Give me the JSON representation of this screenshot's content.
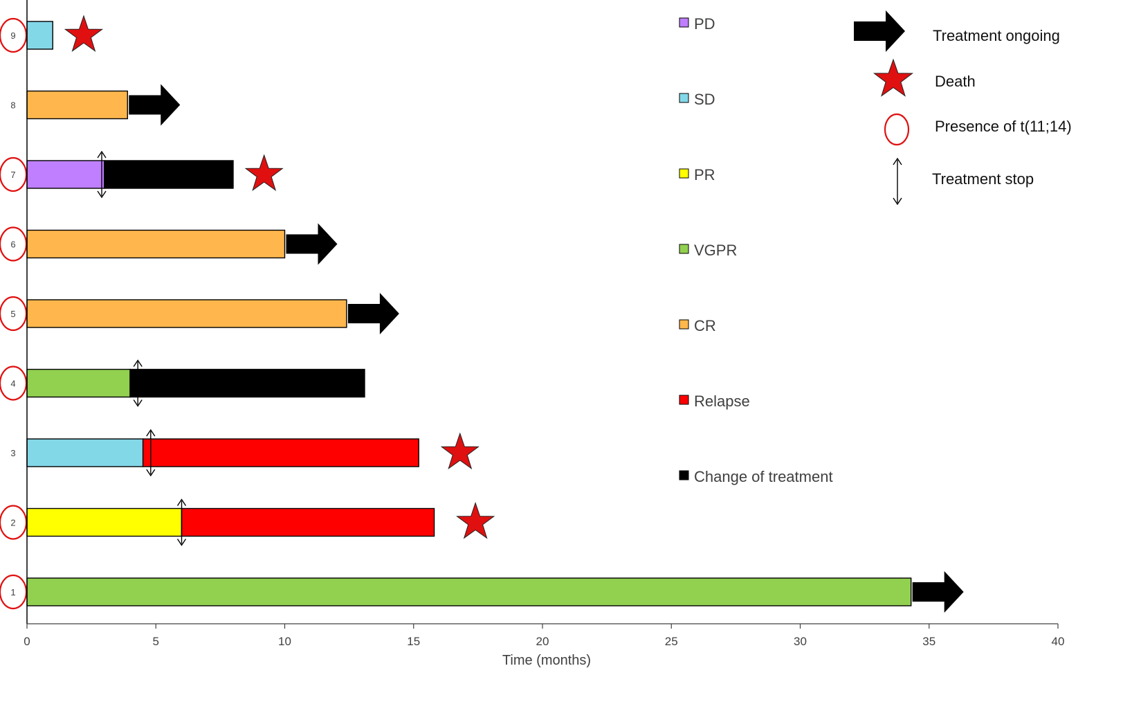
{
  "chart_data": {
    "type": "swimmer",
    "xlabel": "Time (months)",
    "xlim": [
      0,
      40
    ],
    "xticks": [
      0,
      5,
      10,
      15,
      20,
      25,
      30,
      35,
      40
    ],
    "patients": [
      {
        "id": "1",
        "t1114": true,
        "segments": [
          {
            "status": "VGPR",
            "start": 0,
            "end": 34.3
          }
        ],
        "treatment_stop": null,
        "ongoing": true,
        "death": null
      },
      {
        "id": "2",
        "t1114": true,
        "segments": [
          {
            "status": "PR",
            "start": 0,
            "end": 6.0
          },
          {
            "status": "Relapse",
            "start": 6.0,
            "end": 15.8
          }
        ],
        "treatment_stop": 6.0,
        "ongoing": false,
        "death": 17.4
      },
      {
        "id": "3",
        "t1114": false,
        "segments": [
          {
            "status": "SD",
            "start": 0,
            "end": 4.5
          },
          {
            "status": "Relapse",
            "start": 4.5,
            "end": 15.2
          }
        ],
        "treatment_stop": 4.8,
        "ongoing": false,
        "death": 16.8
      },
      {
        "id": "4",
        "t1114": true,
        "segments": [
          {
            "status": "VGPR",
            "start": 0,
            "end": 4.0
          },
          {
            "status": "Change of treatment",
            "start": 4.0,
            "end": 13.1
          }
        ],
        "treatment_stop": 4.3,
        "ongoing": false,
        "death": null
      },
      {
        "id": "5",
        "t1114": true,
        "segments": [
          {
            "status": "CR",
            "start": 0,
            "end": 12.4
          }
        ],
        "treatment_stop": null,
        "ongoing": true,
        "death": null
      },
      {
        "id": "6",
        "t1114": true,
        "segments": [
          {
            "status": "CR",
            "start": 0,
            "end": 10.0
          }
        ],
        "treatment_stop": null,
        "ongoing": true,
        "death": null
      },
      {
        "id": "7",
        "t1114": true,
        "segments": [
          {
            "status": "PD",
            "start": 0,
            "end": 3.0
          },
          {
            "status": "Change of treatment",
            "start": 3.0,
            "end": 8.0
          }
        ],
        "treatment_stop": 2.9,
        "ongoing": false,
        "death": 9.2
      },
      {
        "id": "8",
        "t1114": false,
        "segments": [
          {
            "status": "CR",
            "start": 0,
            "end": 3.9
          }
        ],
        "treatment_stop": null,
        "ongoing": true,
        "death": null
      },
      {
        "id": "9",
        "t1114": true,
        "segments": [
          {
            "status": "SD",
            "start": 0,
            "end": 1.0
          }
        ],
        "treatment_stop": null,
        "ongoing": false,
        "death": 2.2
      }
    ],
    "status_legend": [
      {
        "label": "PD",
        "color": "#bf7fff"
      },
      {
        "label": "SD",
        "color": "#83d8e8"
      },
      {
        "label": "PR",
        "color": "#ffff00"
      },
      {
        "label": "VGPR",
        "color": "#92d050"
      },
      {
        "label": "CR",
        "color": "#ffb74d"
      },
      {
        "label": "Relapse",
        "color": "#ff0000"
      },
      {
        "label": "Change of treatment",
        "color": "#000000"
      }
    ],
    "symbol_legend": {
      "ongoing": "Treatment ongoing",
      "death": "Death",
      "t1114": "Presence of t(11;14)",
      "stop": "Treatment stop"
    }
  }
}
